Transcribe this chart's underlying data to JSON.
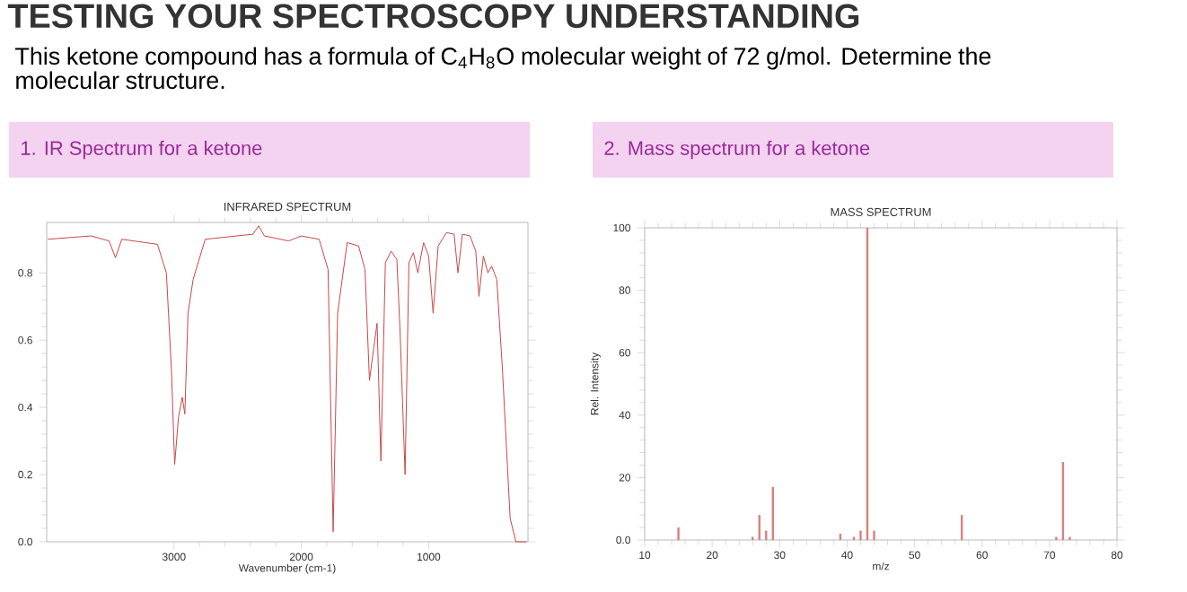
{
  "chart_data": [
    {
      "type": "other",
      "title": "TESTING YOUR SPECTROSCOPY UNDERSTANDING",
      "subtitle": "This ketone compound has a formula of C$_{4}$H$_{8}$O molecular weight of 72 g/mol. Determine the molecular structure."
    },
    {
      "type": "line",
      "title": "1. IR Spectrum for a ketone",
      "subtitle": "INFRARED SPECTRUM",
      "xlabel": "Wavenumber (cm-1)",
      "x": [
        3990,
        3650,
        3510,
        3460,
        3410,
        3130,
        3060,
        3020,
        2995,
        2965,
        2935,
        2915,
        2890,
        2850,
        2755,
        2380,
        2335,
        2290,
        2100,
        2000,
        1860,
        1790,
        1750,
        1715,
        1640,
        1550,
        1500,
        1465,
        1430,
        1405,
        1375,
        1340,
        1295,
        1250,
        1225,
        1185,
        1155,
        1120,
        1085,
        1040,
        1000,
        965,
        925,
        860,
        800,
        770,
        735,
        675,
        630,
        605,
        570,
        535,
        505,
        465,
        420,
        360,
        315,
        230
      ],
      "values": [
        0.9,
        0.91,
        0.895,
        0.845,
        0.9,
        0.885,
        0.8,
        0.51,
        0.23,
        0.37,
        0.43,
        0.38,
        0.68,
        0.78,
        0.9,
        0.915,
        0.94,
        0.91,
        0.895,
        0.91,
        0.9,
        0.81,
        0.03,
        0.68,
        0.89,
        0.88,
        0.81,
        0.48,
        0.58,
        0.65,
        0.24,
        0.83,
        0.865,
        0.84,
        0.63,
        0.2,
        0.83,
        0.86,
        0.8,
        0.89,
        0.85,
        0.68,
        0.88,
        0.92,
        0.915,
        0.8,
        0.915,
        0.91,
        0.865,
        0.73,
        0.85,
        0.8,
        0.82,
        0.78,
        0.51,
        0.07,
        0.0,
        0.0
      ],
      "color": "#c8474a",
      "xlim": [
        4000,
        220
      ],
      "ylim": [
        0,
        0.95
      ],
      "xticks": [
        3000,
        2000,
        1000
      ],
      "yticks": [
        {
          "value": 0,
          "label": "0.0"
        },
        0.2,
        0.4,
        0.6,
        0.8
      ]
    },
    {
      "type": "bar",
      "title": "2. Mass spectrum for a ketone",
      "subtitle": "MASS SPECTRUM",
      "xlabel": "m/z",
      "ylabel": "Rel. Intensity",
      "x": [
        15,
        26,
        27,
        28,
        29,
        39,
        41,
        42,
        43,
        44,
        57,
        71,
        72,
        73
      ],
      "values": [
        4,
        1,
        8,
        3,
        17,
        2,
        1,
        3,
        100,
        3,
        8,
        1,
        25,
        1
      ],
      "color": "#d98080",
      "xlim": [
        10,
        80
      ],
      "ylim": [
        0,
        100
      ],
      "xticks": [
        10,
        20,
        30,
        40,
        50,
        60,
        70,
        80
      ],
      "yticks": [
        {
          "value": 0,
          "label": "0.0"
        },
        20,
        40,
        60,
        80,
        100
      ]
    }
  ]
}
